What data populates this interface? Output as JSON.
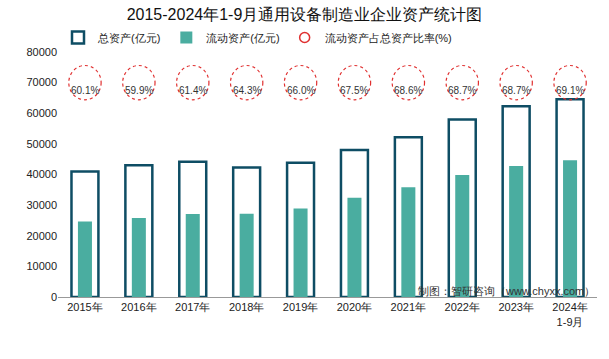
{
  "chart_data": {
    "type": "bar",
    "title": "2015-2024年1-9月通用设备制造业企业资产统计图",
    "source": "制图：智研咨询（www.chyxx.com）",
    "categories": [
      "2015年",
      "2016年",
      "2017年",
      "2018年",
      "2019年",
      "2020年",
      "2021年",
      "2022年",
      "2023年",
      "2024年\n1-9月"
    ],
    "series": [
      {
        "name": "总资产(亿元)",
        "type": "bar",
        "color": "#0e4d64",
        "marker": "outline",
        "values": [
          41000,
          43000,
          44200,
          42300,
          43800,
          48000,
          52200,
          58000,
          62300,
          64600
        ]
      },
      {
        "name": "流动资产(亿元)",
        "type": "bar",
        "color": "#4aada0",
        "marker": "filled",
        "values": [
          24640,
          25760,
          27140,
          27200,
          28900,
          32400,
          35800,
          39850,
          42800,
          44640
        ]
      },
      {
        "name": "流动资产占总资产比率(%)",
        "type": "label",
        "color": "#e03030",
        "marker": "dotted circle",
        "values": [
          60.1,
          59.9,
          61.4,
          64.3,
          66.0,
          67.5,
          68.6,
          68.7,
          68.7,
          69.1
        ],
        "value_labels": [
          "60.1%",
          "59.9%",
          "61.4%",
          "64.3%",
          "66.0%",
          "67.5%",
          "68.6%",
          "68.7%",
          "68.7%",
          "69.1%"
        ]
      }
    ],
    "ylim": [
      0,
      80000
    ],
    "yticks": [
      0,
      10000,
      20000,
      30000,
      40000,
      50000,
      60000,
      70000,
      80000
    ],
    "grid": false,
    "legend": "top-left"
  }
}
